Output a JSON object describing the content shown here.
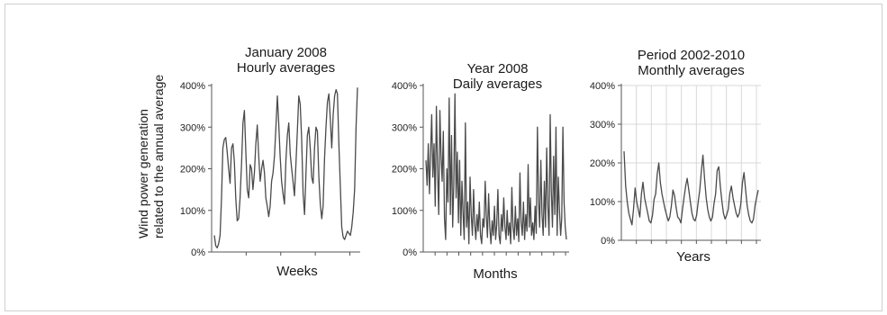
{
  "figure": {
    "ylabel": [
      "Wind power generation",
      "related to the annual average"
    ]
  },
  "chart_data": [
    {
      "type": "line",
      "title": [
        "January 2008",
        "Hourly averages"
      ],
      "xlabel": "Weeks",
      "ylabel": "Wind power generation related to the annual average",
      "ytick_labels": [
        "0%",
        "100%",
        "200%",
        "300%",
        "400%"
      ],
      "ylim": [
        0,
        400
      ],
      "x_ticks": 4,
      "grid": false,
      "series": [
        {
          "values": [
            40,
            15,
            10,
            20,
            40,
            130,
            250,
            270,
            275,
            240,
            200,
            165,
            250,
            260,
            215,
            130,
            75,
            80,
            130,
            210,
            310,
            340,
            240,
            150,
            130,
            210,
            200,
            150,
            190,
            260,
            305,
            230,
            170,
            200,
            220,
            190,
            130,
            110,
            85,
            110,
            170,
            190,
            230,
            300,
            375,
            310,
            230,
            170,
            140,
            115,
            220,
            280,
            310,
            235,
            200,
            170,
            135,
            210,
            290,
            375,
            355,
            270,
            140,
            90,
            190,
            280,
            300,
            250,
            180,
            165,
            250,
            300,
            290,
            180,
            115,
            80,
            110,
            225,
            300,
            360,
            380,
            320,
            250,
            330,
            375,
            390,
            380,
            260,
            160,
            60,
            35,
            30,
            40,
            50,
            45,
            40,
            60,
            95,
            150,
            300,
            395
          ]
        }
      ]
    },
    {
      "type": "line",
      "title": [
        "Year 2008",
        "Daily  averages"
      ],
      "xlabel": "Months",
      "ylabel": "",
      "ytick_labels": [
        "0%",
        "100%",
        "200%",
        "300%",
        "400%"
      ],
      "ylim": [
        0,
        400
      ],
      "x_ticks": 12,
      "grid": false,
      "series": [
        {
          "values": [
            220,
            160,
            260,
            140,
            240,
            330,
            180,
            260,
            110,
            350,
            200,
            90,
            340,
            230,
            170,
            290,
            80,
            30,
            200,
            120,
            370,
            90,
            280,
            60,
            160,
            380,
            130,
            240,
            70,
            220,
            40,
            170,
            90,
            30,
            310,
            60,
            120,
            20,
            180,
            90,
            40,
            150,
            70,
            30,
            90,
            50,
            120,
            40,
            20,
            80,
            60,
            170,
            90,
            35,
            140,
            60,
            20,
            75,
            40,
            110,
            30,
            65,
            150,
            40,
            20,
            90,
            50,
            130,
            60,
            30,
            100,
            40,
            70,
            20,
            155,
            60,
            30,
            110,
            40,
            80,
            25,
            190,
            70,
            40,
            120,
            30,
            90,
            50,
            210,
            60,
            130,
            40,
            70,
            30,
            110,
            45,
            300,
            120,
            60,
            220,
            90,
            40,
            170,
            60,
            250,
            110,
            40,
            330,
            150,
            60,
            230,
            90,
            300,
            40,
            180,
            100,
            40,
            80,
            300,
            120,
            60,
            30
          ]
        }
      ]
    },
    {
      "type": "line",
      "title": [
        "Period 2002-2010",
        "Monthly  averages"
      ],
      "xlabel": "Years",
      "ylabel": "",
      "ytick_labels": [
        "0%",
        "100%",
        "200%",
        "300%",
        "400%"
      ],
      "ylim": [
        0,
        400
      ],
      "x_ticks": 9,
      "grid": true,
      "series": [
        {
          "values": [
            230,
            140,
            100,
            70,
            55,
            40,
            80,
            135,
            100,
            80,
            60,
            120,
            150,
            110,
            90,
            70,
            50,
            45,
            65,
            105,
            120,
            170,
            200,
            150,
            120,
            100,
            80,
            65,
            50,
            60,
            90,
            130,
            115,
            85,
            60,
            55,
            45,
            80,
            110,
            140,
            160,
            130,
            100,
            70,
            55,
            50,
            65,
            100,
            130,
            180,
            220,
            160,
            110,
            80,
            60,
            50,
            60,
            95,
            120,
            180,
            190,
            140,
            100,
            70,
            55,
            65,
            80,
            120,
            140,
            110,
            90,
            70,
            60,
            70,
            95,
            150,
            175,
            130,
            90,
            65,
            50,
            45,
            55,
            90,
            110,
            130
          ]
        }
      ]
    }
  ]
}
